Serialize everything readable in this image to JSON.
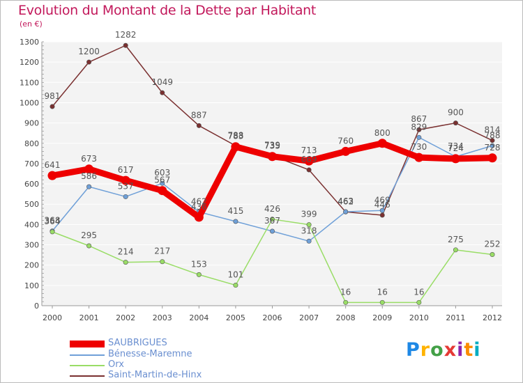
{
  "header": {
    "title": "Evolution du Montant de la Dette par Habitant",
    "unit": "(en €)"
  },
  "logo": {
    "text": "Proxiti",
    "colors": [
      "#1e88e5",
      "#ffb300",
      "#43a047",
      "#e53935",
      "#8e24aa",
      "#fb8c00",
      "#00acc1"
    ]
  },
  "chart_data": {
    "type": "line",
    "title": "Evolution du Montant de la Dette par Habitant",
    "subtitle": "(en €)",
    "x": [
      "2000",
      "2001",
      "2002",
      "2003",
      "2004",
      "2005",
      "2006",
      "2007",
      "2008",
      "2009",
      "2010",
      "2011",
      "2012"
    ],
    "ylim": [
      0,
      1300
    ],
    "yticks": [
      0,
      100,
      200,
      300,
      400,
      500,
      600,
      700,
      800,
      900,
      1000,
      1100,
      1200,
      1300
    ],
    "grid": true,
    "legend_position": "bottom-left",
    "series": [
      {
        "name": "SAUBRIGUES",
        "color": "#ee0000",
        "width": 9,
        "values": [
          641,
          673,
          617,
          567,
          436,
          783,
          735,
          713,
          760,
          800,
          730,
          724,
          728
        ]
      },
      {
        "name": "Bénesse-Maremne",
        "color": "#6fa0d8",
        "width": 1.5,
        "values": [
          368,
          586,
          537,
          603,
          462,
          415,
          367,
          318,
          463,
          469,
          829,
          734,
          788
        ]
      },
      {
        "name": "Orx",
        "color": "#99dd66",
        "width": 1.5,
        "values": [
          364,
          295,
          214,
          217,
          153,
          101,
          426,
          399,
          16,
          16,
          16,
          275,
          252
        ]
      },
      {
        "name": "Saint-Martin-de-Hinx",
        "color": "#7a3030",
        "width": 1.5,
        "values": [
          981,
          1200,
          1282,
          1049,
          887,
          788,
          739,
          669,
          462,
          446,
          867,
          900,
          814
        ]
      }
    ],
    "value_labels": [
      [
        "641",
        "673",
        "617",
        "567",
        "436",
        "783",
        "735",
        "713",
        "760",
        "800",
        "730",
        "724",
        "728"
      ],
      [
        "368",
        "586",
        "537",
        "603",
        "462",
        "415",
        "367",
        "318",
        "463",
        "469",
        "829",
        "734",
        "788"
      ],
      [
        "364",
        "295",
        "214",
        "217",
        "153",
        "101",
        "426",
        "399",
        "16",
        "16",
        "16",
        "275",
        "252"
      ],
      [
        "981",
        "1200",
        "1282",
        "1049",
        "887",
        "788",
        "739",
        "669",
        "462",
        "446",
        "867",
        "900",
        "814"
      ]
    ]
  }
}
